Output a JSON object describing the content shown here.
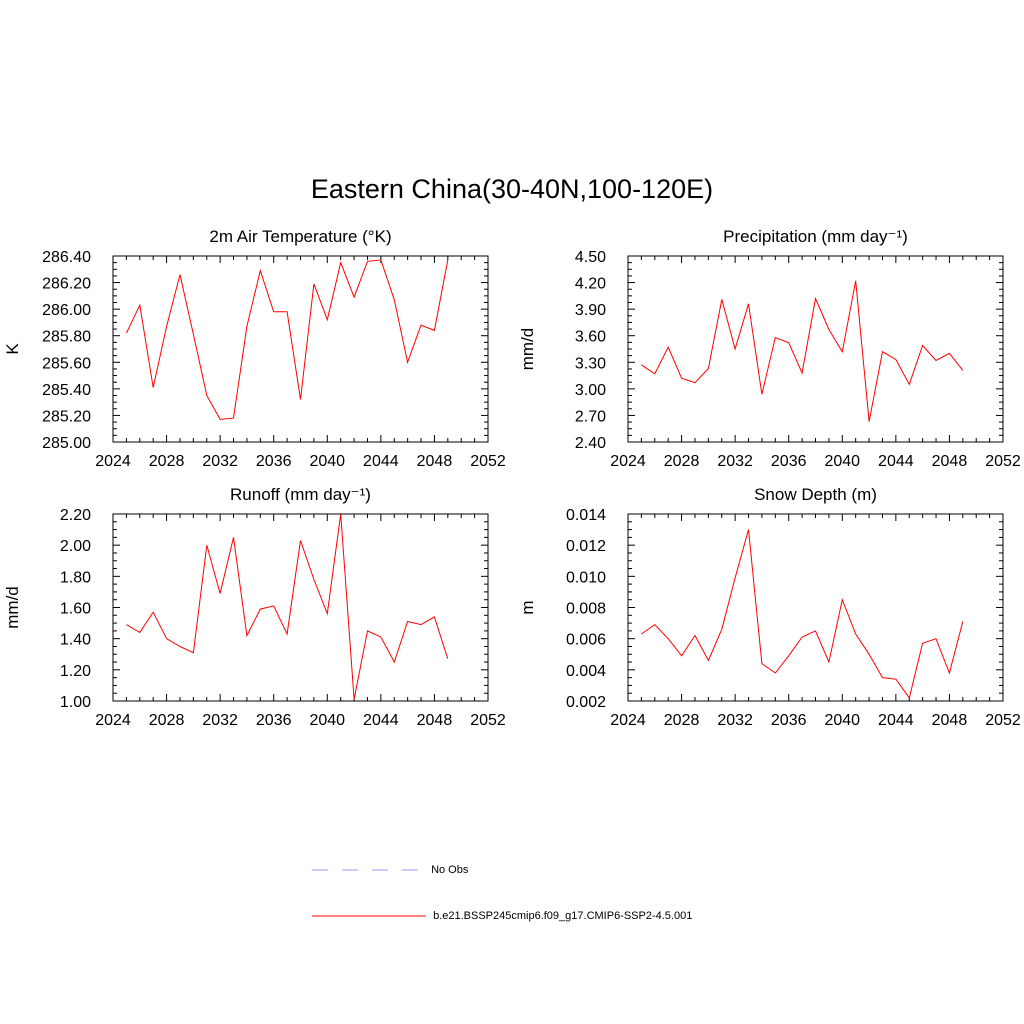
{
  "main_title": "Eastern China(30-40N,100-120E)",
  "chart_data": [
    {
      "type": "line",
      "title": "2m Air Temperature (°K)",
      "ylabel": "K",
      "xlabel": "",
      "xlim": [
        2024,
        2052
      ],
      "ylim": [
        285.0,
        286.4
      ],
      "x_ticks": [
        "2024",
        "2028",
        "2032",
        "2036",
        "2040",
        "2044",
        "2048",
        "2052"
      ],
      "y_ticks": [
        "285.00",
        "285.20",
        "285.40",
        "285.60",
        "285.80",
        "286.00",
        "286.20",
        "286.40"
      ],
      "x": [
        2025,
        2026,
        2027,
        2028,
        2029,
        2030,
        2031,
        2032,
        2033,
        2034,
        2035,
        2036,
        2037,
        2038,
        2039,
        2040,
        2041,
        2042,
        2043,
        2044,
        2045,
        2046,
        2047,
        2048,
        2049
      ],
      "series": [
        {
          "name": "b.e21.BSSP245cmip6.f09_g17.CMIP6-SSP2-4.5.001",
          "color": "#ff0000",
          "values": [
            285.82,
            286.03,
            285.41,
            285.87,
            286.26,
            285.81,
            285.35,
            285.17,
            285.18,
            285.87,
            286.29,
            285.98,
            285.98,
            285.32,
            286.19,
            285.92,
            286.35,
            286.09,
            286.36,
            286.37,
            286.07,
            285.6,
            285.88,
            285.84,
            286.37
          ]
        }
      ]
    },
    {
      "type": "line",
      "title": "Precipitation (mm day⁻¹)",
      "ylabel": "mm/d",
      "xlabel": "",
      "xlim": [
        2024,
        2052
      ],
      "ylim": [
        2.4,
        4.5
      ],
      "x_ticks": [
        "2024",
        "2028",
        "2032",
        "2036",
        "2040",
        "2044",
        "2048",
        "2052"
      ],
      "y_ticks": [
        "2.40",
        "2.70",
        "3.00",
        "3.30",
        "3.60",
        "3.90",
        "4.20",
        "4.50"
      ],
      "x": [
        2025,
        2026,
        2027,
        2028,
        2029,
        2030,
        2031,
        2032,
        2033,
        2034,
        2035,
        2036,
        2037,
        2038,
        2039,
        2040,
        2041,
        2042,
        2043,
        2044,
        2045,
        2046,
        2047,
        2048,
        2049
      ],
      "series": [
        {
          "name": "b.e21.BSSP245cmip6.f09_g17.CMIP6-SSP2-4.5.001",
          "color": "#ff0000",
          "values": [
            3.27,
            3.17,
            3.47,
            3.12,
            3.07,
            3.23,
            4.01,
            3.45,
            3.96,
            2.94,
            3.58,
            3.52,
            3.18,
            4.02,
            3.67,
            3.42,
            4.22,
            2.63,
            3.42,
            3.33,
            3.05,
            3.49,
            3.32,
            3.4,
            3.21
          ]
        }
      ]
    },
    {
      "type": "line",
      "title": "Runoff (mm day⁻¹)",
      "ylabel": "mm/d",
      "xlabel": "",
      "xlim": [
        2024,
        2052
      ],
      "ylim": [
        1.0,
        2.2
      ],
      "x_ticks": [
        "2024",
        "2028",
        "2032",
        "2036",
        "2040",
        "2044",
        "2048",
        "2052"
      ],
      "y_ticks": [
        "1.00",
        "1.20",
        "1.40",
        "1.60",
        "1.80",
        "2.00",
        "2.20"
      ],
      "x": [
        2025,
        2026,
        2027,
        2028,
        2029,
        2030,
        2031,
        2032,
        2033,
        2034,
        2035,
        2036,
        2037,
        2038,
        2039,
        2040,
        2041,
        2042,
        2043,
        2044,
        2045,
        2046,
        2047,
        2048,
        2049
      ],
      "series": [
        {
          "name": "b.e21.BSSP245cmip6.f09_g17.CMIP6-SSP2-4.5.001",
          "color": "#ff0000",
          "values": [
            1.49,
            1.44,
            1.57,
            1.4,
            1.35,
            1.31,
            2.0,
            1.69,
            2.05,
            1.42,
            1.59,
            1.61,
            1.43,
            2.03,
            1.78,
            1.56,
            2.2,
            1.01,
            1.45,
            1.41,
            1.25,
            1.51,
            1.49,
            1.54,
            1.27
          ]
        }
      ]
    },
    {
      "type": "line",
      "title": "Snow Depth (m)",
      "ylabel": "m",
      "xlabel": "",
      "xlim": [
        2024,
        2052
      ],
      "ylim": [
        0.002,
        0.014
      ],
      "x_ticks": [
        "2024",
        "2028",
        "2032",
        "2036",
        "2040",
        "2044",
        "2048",
        "2052"
      ],
      "y_ticks": [
        "0.002",
        "0.004",
        "0.006",
        "0.008",
        "0.010",
        "0.012",
        "0.014"
      ],
      "x": [
        2025,
        2026,
        2027,
        2028,
        2029,
        2030,
        2031,
        2032,
        2033,
        2034,
        2035,
        2036,
        2037,
        2038,
        2039,
        2040,
        2041,
        2042,
        2043,
        2044,
        2045,
        2046,
        2047,
        2048,
        2049
      ],
      "series": [
        {
          "name": "b.e21.BSSP245cmip6.f09_g17.CMIP6-SSP2-4.5.001",
          "color": "#ff0000",
          "values": [
            0.0063,
            0.0069,
            0.006,
            0.0049,
            0.0062,
            0.0046,
            0.0066,
            0.0099,
            0.013,
            0.0044,
            0.0038,
            0.0049,
            0.0061,
            0.0065,
            0.0045,
            0.0085,
            0.0063,
            0.005,
            0.0035,
            0.0034,
            0.0022,
            0.0057,
            0.006,
            0.0038,
            0.0071
          ]
        }
      ]
    }
  ],
  "legend": {
    "items": [
      {
        "label": "No Obs",
        "color": "#9999ff",
        "dash": "dashed"
      },
      {
        "label": "b.e21.BSSP245cmip6.f09_g17.CMIP6-SSP2-4.5.001",
        "color": "#ff0000",
        "dash": "solid"
      }
    ]
  }
}
